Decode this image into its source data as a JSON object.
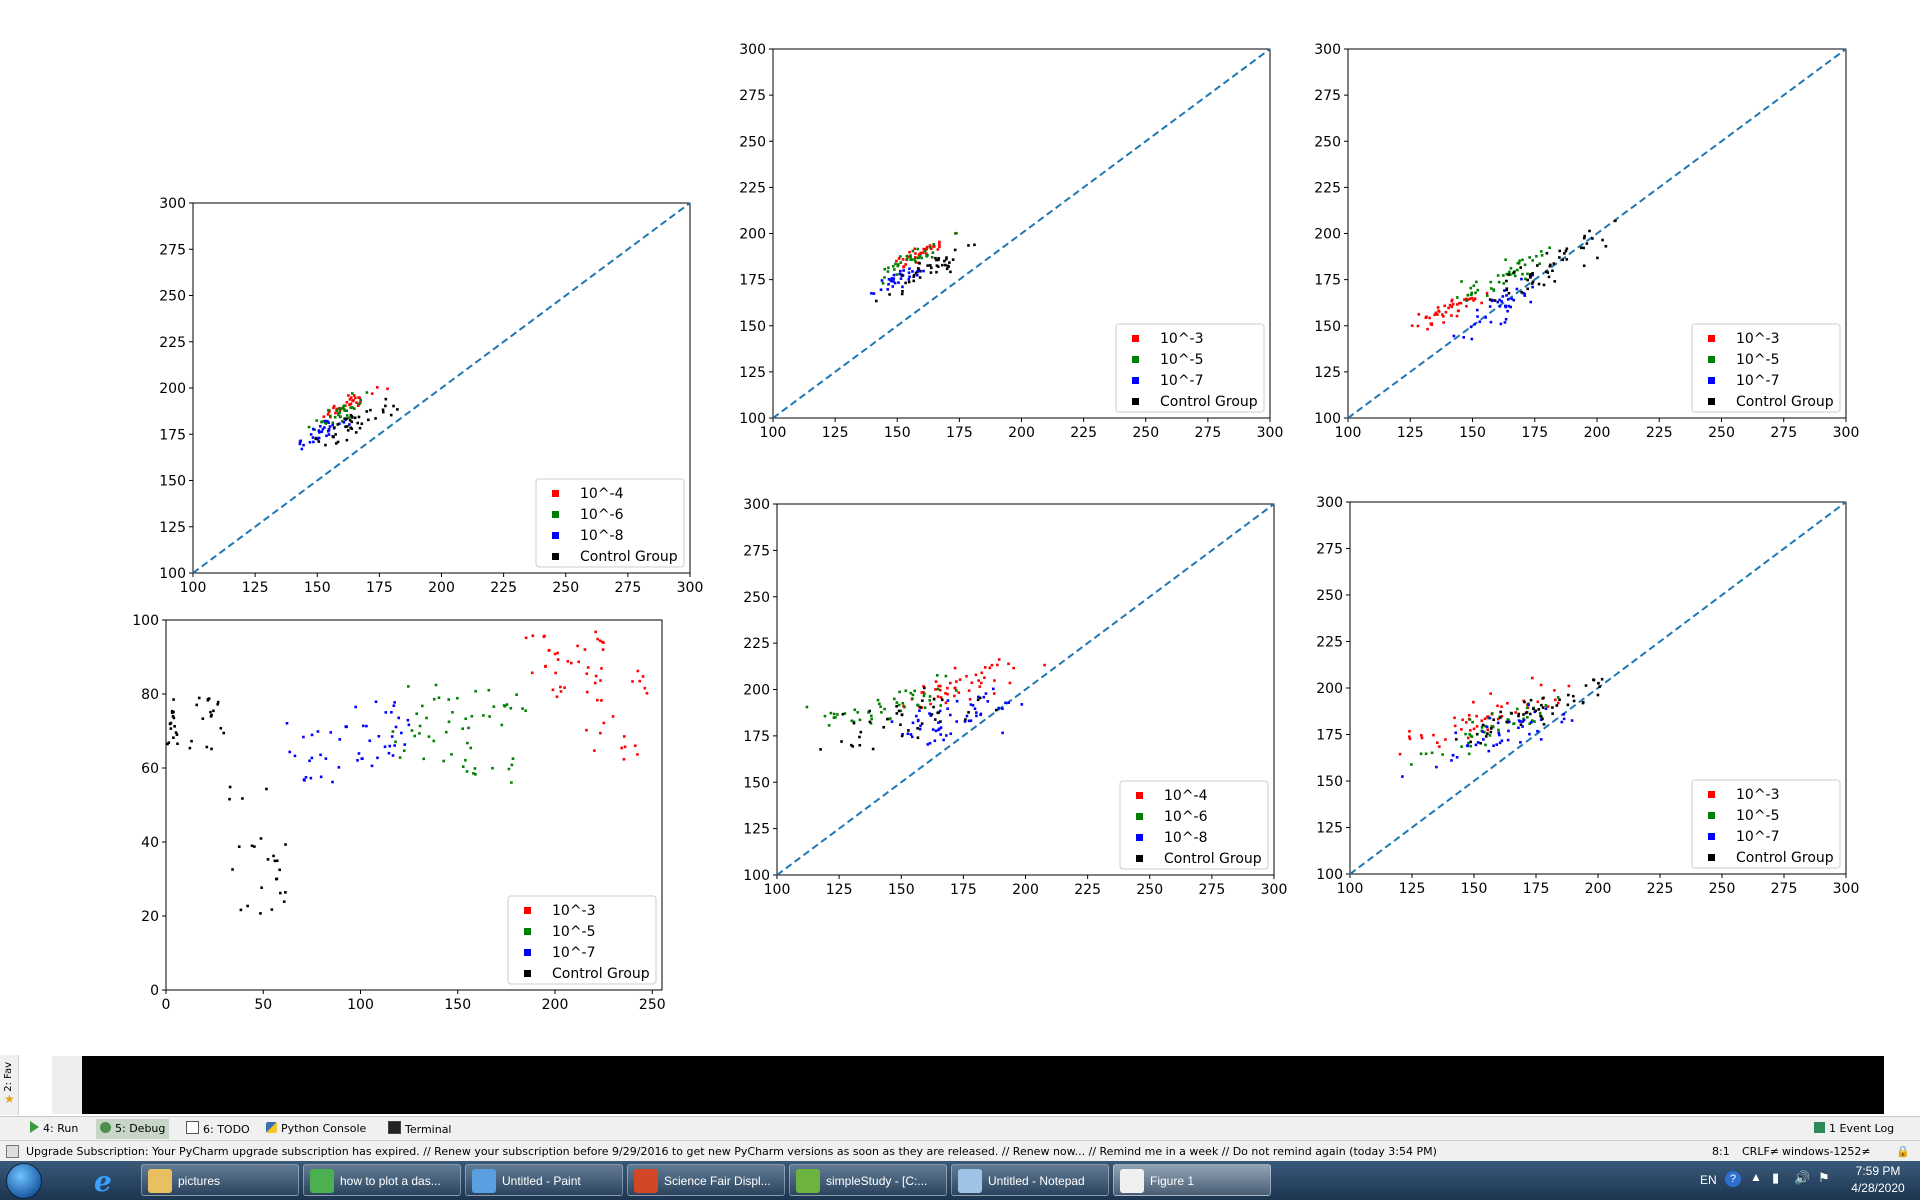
{
  "chart_data": [
    {
      "type": "scatter",
      "id": "p1",
      "xlim": [
        100,
        300
      ],
      "ylim": [
        100,
        300
      ],
      "xticks": [
        "100",
        "125",
        "150",
        "175",
        "200",
        "225",
        "250",
        "275",
        "300"
      ],
      "yticks": [
        "100",
        "125",
        "150",
        "175",
        "200",
        "225",
        "250",
        "275",
        "300"
      ],
      "diagonal": true,
      "legend_loc": "lower-right",
      "series": [
        {
          "name": "10^-4",
          "color": "#ff0000",
          "seed": 11,
          "n": 34,
          "xc": 162,
          "xs": 10,
          "yb": 150,
          "ysl": 0.66,
          "yn": 4,
          "cap": 255
        },
        {
          "name": "10^-6",
          "color": "#008000",
          "seed": 12,
          "n": 34,
          "xc": 158,
          "xs": 12,
          "yb": 148,
          "ysl": 0.66,
          "yn": 5,
          "cap": 255
        },
        {
          "name": "10^-8",
          "color": "#0000ff",
          "seed": 13,
          "n": 34,
          "xc": 152,
          "xs": 10,
          "yb": 142,
          "ysl": 0.66,
          "yn": 5,
          "cap": 255
        },
        {
          "name": "Control Group",
          "color": "#000000",
          "seed": 14,
          "n": 40,
          "xc": 165,
          "xs": 15,
          "yb": 138,
          "ysl": 0.66,
          "yn": 6,
          "cap": 255
        }
      ]
    },
    {
      "type": "scatter",
      "id": "p2",
      "xlim": [
        100,
        300
      ],
      "ylim": [
        100,
        300
      ],
      "xticks": [
        "100",
        "125",
        "150",
        "175",
        "200",
        "225",
        "250",
        "275",
        "300"
      ],
      "yticks": [
        "100",
        "125",
        "150",
        "175",
        "200",
        "225",
        "250",
        "275",
        "300"
      ],
      "diagonal": true,
      "legend_loc": "lower-right",
      "series": [
        {
          "name": "10^-3",
          "color": "#ff0000",
          "seed": 21,
          "n": 34,
          "xc": 160,
          "xs": 12,
          "yb": 150,
          "ysl": 0.66,
          "yn": 4,
          "cap": 255
        },
        {
          "name": "10^-5",
          "color": "#008000",
          "seed": 22,
          "n": 34,
          "xc": 155,
          "xs": 14,
          "yb": 148,
          "ysl": 0.66,
          "yn": 5,
          "cap": 255
        },
        {
          "name": "10^-7",
          "color": "#0000ff",
          "seed": 23,
          "n": 34,
          "xc": 150,
          "xs": 12,
          "yb": 142,
          "ysl": 0.66,
          "yn": 5,
          "cap": 255
        },
        {
          "name": "Control Group",
          "color": "#000000",
          "seed": 24,
          "n": 40,
          "xc": 165,
          "xs": 16,
          "yb": 138,
          "ysl": 0.66,
          "yn": 6,
          "cap": 255
        }
      ]
    },
    {
      "type": "scatter",
      "id": "p3",
      "xlim": [
        100,
        300
      ],
      "ylim": [
        100,
        300
      ],
      "xticks": [
        "100",
        "125",
        "150",
        "175",
        "200",
        "225",
        "250",
        "275",
        "300"
      ],
      "yticks": [
        "100",
        "125",
        "150",
        "175",
        "200",
        "225",
        "250",
        "275",
        "300"
      ],
      "diagonal": true,
      "legend_loc": "lower-right",
      "series": [
        {
          "name": "10^-3",
          "color": "#ff0000",
          "seed": 31,
          "n": 45,
          "xc": 140,
          "xs": 15,
          "yb": 130,
          "ysl": 0.7,
          "yn": 6,
          "cap": 255
        },
        {
          "name": "10^-5",
          "color": "#008000",
          "seed": 32,
          "n": 45,
          "xc": 160,
          "xs": 20,
          "yb": 136,
          "ysl": 0.66,
          "yn": 7,
          "cap": 255
        },
        {
          "name": "10^-7",
          "color": "#0000ff",
          "seed": 33,
          "n": 40,
          "xc": 160,
          "xs": 15,
          "yb": 118,
          "ysl": 0.7,
          "yn": 8,
          "cap": 255
        },
        {
          "name": "Control Group",
          "color": "#000000",
          "seed": 34,
          "n": 50,
          "xc": 180,
          "xs": 25,
          "yb": 125,
          "ysl": 0.7,
          "yn": 8,
          "cap": 255
        }
      ]
    },
    {
      "type": "scatter",
      "id": "p4",
      "xlim": [
        100,
        300
      ],
      "ylim": [
        100,
        300
      ],
      "xticks": [
        "100",
        "125",
        "150",
        "175",
        "200",
        "225",
        "250",
        "275",
        "300"
      ],
      "yticks": [
        "100",
        "125",
        "150",
        "175",
        "200",
        "225",
        "250",
        "275",
        "300"
      ],
      "diagonal": true,
      "legend_loc": "lower-right",
      "series": [
        {
          "name": "10^-4",
          "color": "#ff0000",
          "seed": 41,
          "n": 50,
          "xc": 175,
          "xs": 25,
          "yb": 175,
          "ysl": 0.35,
          "yn": 8,
          "cap": 255
        },
        {
          "name": "10^-6",
          "color": "#008000",
          "seed": 42,
          "n": 50,
          "xc": 145,
          "xs": 25,
          "yb": 175,
          "ysl": 0.35,
          "yn": 9,
          "cap": 255
        },
        {
          "name": "10^-8",
          "color": "#0000ff",
          "seed": 43,
          "n": 55,
          "xc": 170,
          "xs": 22,
          "yb": 160,
          "ysl": 0.35,
          "yn": 12,
          "cap": 255
        },
        {
          "name": "Control Group",
          "color": "#000000",
          "seed": 44,
          "n": 40,
          "xc": 150,
          "xs": 30,
          "yb": 165,
          "ysl": 0.35,
          "yn": 12,
          "cap": 255
        }
      ]
    },
    {
      "type": "scatter",
      "id": "p5",
      "xlim": [
        100,
        300
      ],
      "ylim": [
        100,
        300
      ],
      "xticks": [
        "100",
        "125",
        "150",
        "175",
        "200",
        "225",
        "250",
        "275",
        "300"
      ],
      "yticks": [
        "100",
        "125",
        "150",
        "175",
        "200",
        "225",
        "250",
        "275",
        "300"
      ],
      "diagonal": true,
      "legend_loc": "lower-right",
      "series": [
        {
          "name": "10^-3",
          "color": "#ff0000",
          "seed": 51,
          "n": 50,
          "xc": 155,
          "xs": 30,
          "yb": 160,
          "ysl": 0.45,
          "yn": 10,
          "cap": 255
        },
        {
          "name": "10^-5",
          "color": "#008000",
          "seed": 52,
          "n": 45,
          "xc": 160,
          "xs": 25,
          "yb": 150,
          "ysl": 0.5,
          "yn": 9,
          "cap": 255
        },
        {
          "name": "10^-7",
          "color": "#0000ff",
          "seed": 53,
          "n": 45,
          "xc": 160,
          "xs": 25,
          "yb": 145,
          "ysl": 0.5,
          "yn": 9,
          "cap": 255
        },
        {
          "name": "Control Group",
          "color": "#000000",
          "seed": 54,
          "n": 50,
          "xc": 175,
          "xs": 30,
          "yb": 150,
          "ysl": 0.5,
          "yn": 8,
          "cap": 255
        }
      ]
    },
    {
      "type": "scatter",
      "id": "p6",
      "xlim": [
        0,
        255
      ],
      "ylim": [
        0,
        100
      ],
      "xticks": [
        "0",
        "50",
        "100",
        "150",
        "200",
        "250"
      ],
      "yticks": [
        "0",
        "20",
        "40",
        "60",
        "80",
        "100"
      ],
      "diagonal": false,
      "legend_loc": "lower-right",
      "series": [
        {
          "name": "10^-3",
          "color": "#ff0000",
          "seed": 61,
          "n": 55,
          "x0": 185,
          "x1": 248,
          "clusters": [
            [
              185,
              205,
              78,
              97
            ],
            [
              205,
              225,
              78,
              97
            ],
            [
              215,
              248,
              62,
              87
            ]
          ]
        },
        {
          "name": "10^-5",
          "color": "#008000",
          "seed": 62,
          "n": 55,
          "x0": 115,
          "x1": 185,
          "clusters": [
            [
              115,
              150,
              60,
              84
            ],
            [
              150,
              185,
              56,
              82
            ]
          ]
        },
        {
          "name": "10^-7",
          "color": "#0000ff",
          "seed": 63,
          "n": 50,
          "x0": 62,
          "x1": 125,
          "clusters": [
            [
              62,
              95,
              56,
              73
            ],
            [
              95,
              125,
              60,
              78
            ]
          ]
        },
        {
          "name": "Control Group",
          "color": "#000000",
          "seed": 64,
          "n": 60,
          "x0": 0,
          "x1": 62,
          "clusters": [
            [
              0,
              30,
              65,
              79
            ],
            [
              30,
              62,
              20,
              55
            ]
          ]
        }
      ]
    }
  ],
  "ide": {
    "fav_label": "2: Fav",
    "tool_tabs": [
      "4: Run",
      "5: Debug",
      "6: TODO",
      "Python Console",
      "Terminal"
    ],
    "event_log": "1 Event Log",
    "status_message": "Upgrade Subscription: Your PyCharm upgrade subscription has expired. // Renew your subscription before 9/29/2016 to get new PyCharm versions as soon as they are released. // Renew now... // Remind me in a week // Do not remind again (today 3:54 PM)",
    "caret_position": "8:1",
    "line_separator": "CRLF≠",
    "encoding": "windows-1252≠"
  },
  "taskbar": {
    "buttons": [
      {
        "label": "pictures",
        "color": "#e8c060"
      },
      {
        "label": "how to plot a das...",
        "color": "#4caf50"
      },
      {
        "label": "Untitled - Paint",
        "color": "#5aa0e0"
      },
      {
        "label": "Science Fair Displ...",
        "color": "#d24726"
      },
      {
        "label": "simpleStudy - [C:...",
        "color": "#6cb33f"
      },
      {
        "label": "Untitled - Notepad",
        "color": "#9ec3e6"
      },
      {
        "label": "Figure 1",
        "color": "#f0f0f0"
      }
    ],
    "lang": "EN",
    "time": "7:59 PM",
    "date": "4/28/2020"
  }
}
